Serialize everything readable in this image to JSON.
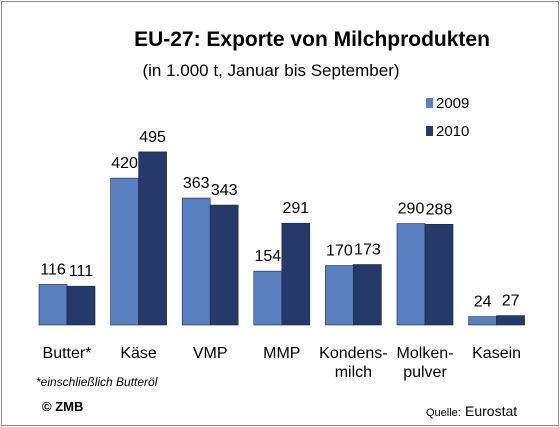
{
  "chart_data": {
    "type": "bar",
    "title": "EU-27: Exporte von Milchprodukten",
    "subtitle": "(in 1.000 t,   Januar bis September)",
    "categories": [
      [
        "Butter*"
      ],
      [
        "Käse"
      ],
      [
        "VMP"
      ],
      [
        "MMP"
      ],
      [
        "Kondens-",
        "milch"
      ],
      [
        "Molken-",
        "pulver"
      ],
      [
        "Kasein"
      ]
    ],
    "series": [
      {
        "name": "2009",
        "values": [
          116,
          420,
          363,
          154,
          170,
          290,
          24
        ],
        "color": "#5b80bf"
      },
      {
        "name": "2010",
        "values": [
          111,
          495,
          343,
          291,
          173,
          288,
          27
        ],
        "color": "#253a6a"
      }
    ],
    "ylim": [
      0,
      540
    ],
    "grid": false,
    "legend_position": "top-right",
    "footnote": "*einschließlich Butteröl",
    "copyright": "© ZMB",
    "source_label": "Quelle:",
    "source_value": "Eurostat"
  }
}
